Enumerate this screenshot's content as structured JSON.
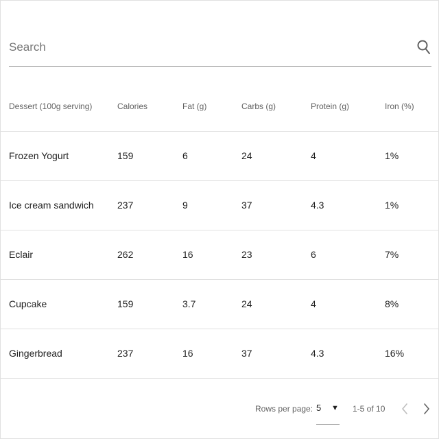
{
  "search": {
    "placeholder": "Search",
    "icon": "search-icon"
  },
  "table": {
    "columns": [
      "Dessert (100g serving)",
      "Calories",
      "Fat (g)",
      "Carbs (g)",
      "Protein (g)",
      "Iron (%)"
    ],
    "rows": [
      [
        "Frozen Yogurt",
        "159",
        "6",
        "24",
        "4",
        "1%"
      ],
      [
        "Ice cream sandwich",
        "237",
        "9",
        "37",
        "4.3",
        "1%"
      ],
      [
        "Eclair",
        "262",
        "16",
        "23",
        "6",
        "7%"
      ],
      [
        "Cupcake",
        "159",
        "3.7",
        "24",
        "4",
        "8%"
      ],
      [
        "Gingerbread",
        "237",
        "16",
        "37",
        "4.3",
        "16%"
      ]
    ]
  },
  "pagination": {
    "rows_per_page_label": "Rows per page:",
    "rows_per_page_value": "5",
    "dropdown_icon": "caret-down-icon",
    "range_text": "1-5 of 10",
    "prev_icon": "chevron-left-icon",
    "next_icon": "chevron-right-icon",
    "prev_color": "#bdbdbd",
    "next_color": "#616161"
  },
  "colors": {
    "divider": "#e0e0e0",
    "underline": "#8a8a8a",
    "text": "#212121",
    "secondary_text": "#616161"
  }
}
